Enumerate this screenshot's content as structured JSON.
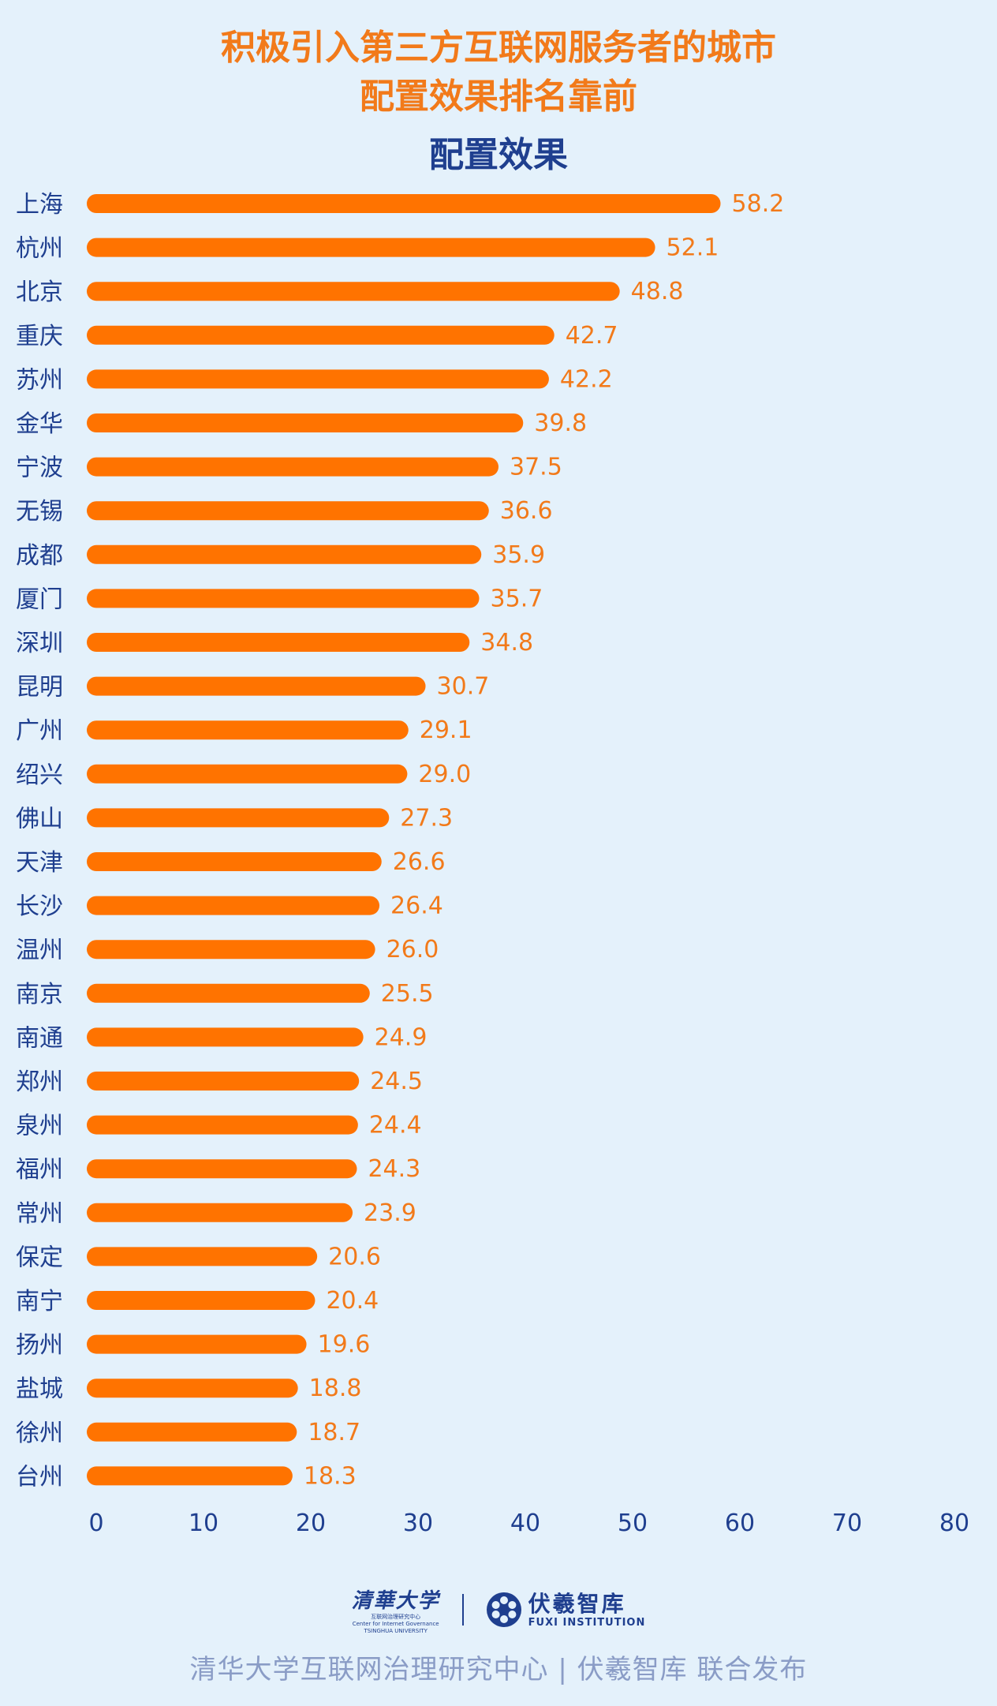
{
  "header": {
    "title_line1": "积极引入第三方互联网服务者的城市",
    "title_line2": "配置效果排名靠前"
  },
  "chart_data": {
    "type": "bar",
    "orientation": "horizontal",
    "title": "配置效果",
    "categories": [
      "上海",
      "杭州",
      "北京",
      "重庆",
      "苏州",
      "金华",
      "宁波",
      "无锡",
      "成都",
      "厦门",
      "深圳",
      "昆明",
      "广州",
      "绍兴",
      "佛山",
      "天津",
      "长沙",
      "温州",
      "南京",
      "南通",
      "郑州",
      "泉州",
      "福州",
      "常州",
      "保定",
      "南宁",
      "扬州",
      "盐城",
      "徐州",
      "台州"
    ],
    "values": [
      58.2,
      52.1,
      48.8,
      42.7,
      42.2,
      39.8,
      37.5,
      36.6,
      35.9,
      35.7,
      34.8,
      30.7,
      29.1,
      29.0,
      27.3,
      26.6,
      26.4,
      26.0,
      25.5,
      24.9,
      24.5,
      24.4,
      24.3,
      23.9,
      20.6,
      20.4,
      19.6,
      18.8,
      18.7,
      18.3
    ],
    "value_labels": [
      "58.2",
      "52.1",
      "48.8",
      "42.7",
      "42.2",
      "39.8",
      "37.5",
      "36.6",
      "35.9",
      "35.7",
      "34.8",
      "30.7",
      "29.1",
      "29.0",
      "27.3",
      "26.6",
      "26.4",
      "26.0",
      "25.5",
      "24.9",
      "24.5",
      "24.4",
      "24.3",
      "23.9",
      "20.6",
      "20.4",
      "19.6",
      "18.8",
      "18.7",
      "18.3"
    ],
    "xlim": [
      0,
      80
    ],
    "xticks": [
      "0",
      "10",
      "20",
      "30",
      "40",
      "50",
      "60",
      "70",
      "80"
    ],
    "grid": false,
    "legend": "none",
    "bar_color": "#ff7300",
    "label_color": "#f27a1a",
    "axis_text_color": "#1f3f8f"
  },
  "logos": {
    "tsinghua_cn": "清華大学",
    "tsinghua_en1": "互联网治理研究中心",
    "tsinghua_en2": "Center for Internet Governance",
    "tsinghua_en3": "TSINGHUA UNIVERSITY",
    "fuxi_cn": "伏羲智库",
    "fuxi_en": "FUXI INSTITUTION",
    "fuxi_icon": "snowflake-flower-icon"
  },
  "footer": {
    "text": "清华大学互联网治理研究中心 | 伏羲智库  联合发布"
  },
  "colors": {
    "background": "#e4f1fb",
    "accent": "#f27a1a",
    "navy": "#1f3f8f",
    "footer_text": "#8a9cc6"
  }
}
